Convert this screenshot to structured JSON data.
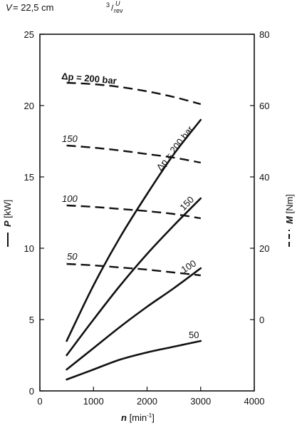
{
  "chart_data": {
    "type": "line",
    "header": {
      "var": "V",
      "eq_value": " = 22,5 cm",
      "unit_sup": "3",
      "unit_slash": "/",
      "unit_top": "U",
      "unit_bottom": "rev"
    },
    "x_axis": {
      "var": "n",
      "unit": " [min",
      "unit_exp": "-1",
      "unit_close": "]",
      "range": [
        0,
        4000
      ],
      "ticks": [
        0,
        1000,
        2000,
        3000,
        4000
      ]
    },
    "y_left": {
      "var": "P",
      "unit": " [kW]",
      "range": [
        0,
        25
      ],
      "ticks": [
        0,
        5,
        10,
        15,
        20,
        25
      ]
    },
    "y_right": {
      "var": "M",
      "unit": " [Nm]",
      "range": [
        -20,
        80
      ],
      "ticks": [
        0,
        20,
        40,
        60,
        80
      ]
    },
    "power_series": [
      {
        "label": "Δp = 200 bar",
        "x": [
          500,
          1000,
          1500,
          2000,
          2500,
          3000
        ],
        "y": [
          3.5,
          7.4,
          10.8,
          13.8,
          16.6,
          19.0
        ]
      },
      {
        "label": "150",
        "x": [
          500,
          1000,
          1500,
          2000,
          2500,
          3000
        ],
        "y": [
          2.5,
          5.0,
          7.4,
          9.6,
          11.6,
          13.5
        ]
      },
      {
        "label": "100",
        "x": [
          500,
          1000,
          1500,
          2000,
          2500,
          3000
        ],
        "y": [
          1.5,
          3.0,
          4.5,
          5.9,
          7.2,
          8.6
        ]
      },
      {
        "label": "50",
        "x": [
          500,
          1000,
          1500,
          2000,
          2500,
          3000
        ],
        "y": [
          0.8,
          1.5,
          2.2,
          2.7,
          3.1,
          3.5
        ]
      }
    ],
    "torque_series": [
      {
        "label": "Δp = 200 bar",
        "x": [
          500,
          1000,
          1500,
          2000,
          2500,
          3000
        ],
        "y": [
          66.4,
          66.0,
          65.2,
          64.0,
          62.4,
          60.4
        ]
      },
      {
        "label": "150",
        "x": [
          500,
          1000,
          1500,
          2000,
          2500,
          3000
        ],
        "y": [
          48.8,
          48.2,
          47.4,
          46.4,
          45.4,
          44.0
        ]
      },
      {
        "label": "100",
        "x": [
          500,
          1000,
          1500,
          2000,
          2500,
          3000
        ],
        "y": [
          32.0,
          31.6,
          31.0,
          30.4,
          29.6,
          28.4
        ]
      },
      {
        "label": "50",
        "x": [
          500,
          1000,
          1500,
          2000,
          2500,
          3000
        ],
        "y": [
          15.6,
          15.2,
          14.6,
          14.0,
          13.2,
          12.4
        ]
      }
    ],
    "grid": false,
    "legend": "none"
  }
}
